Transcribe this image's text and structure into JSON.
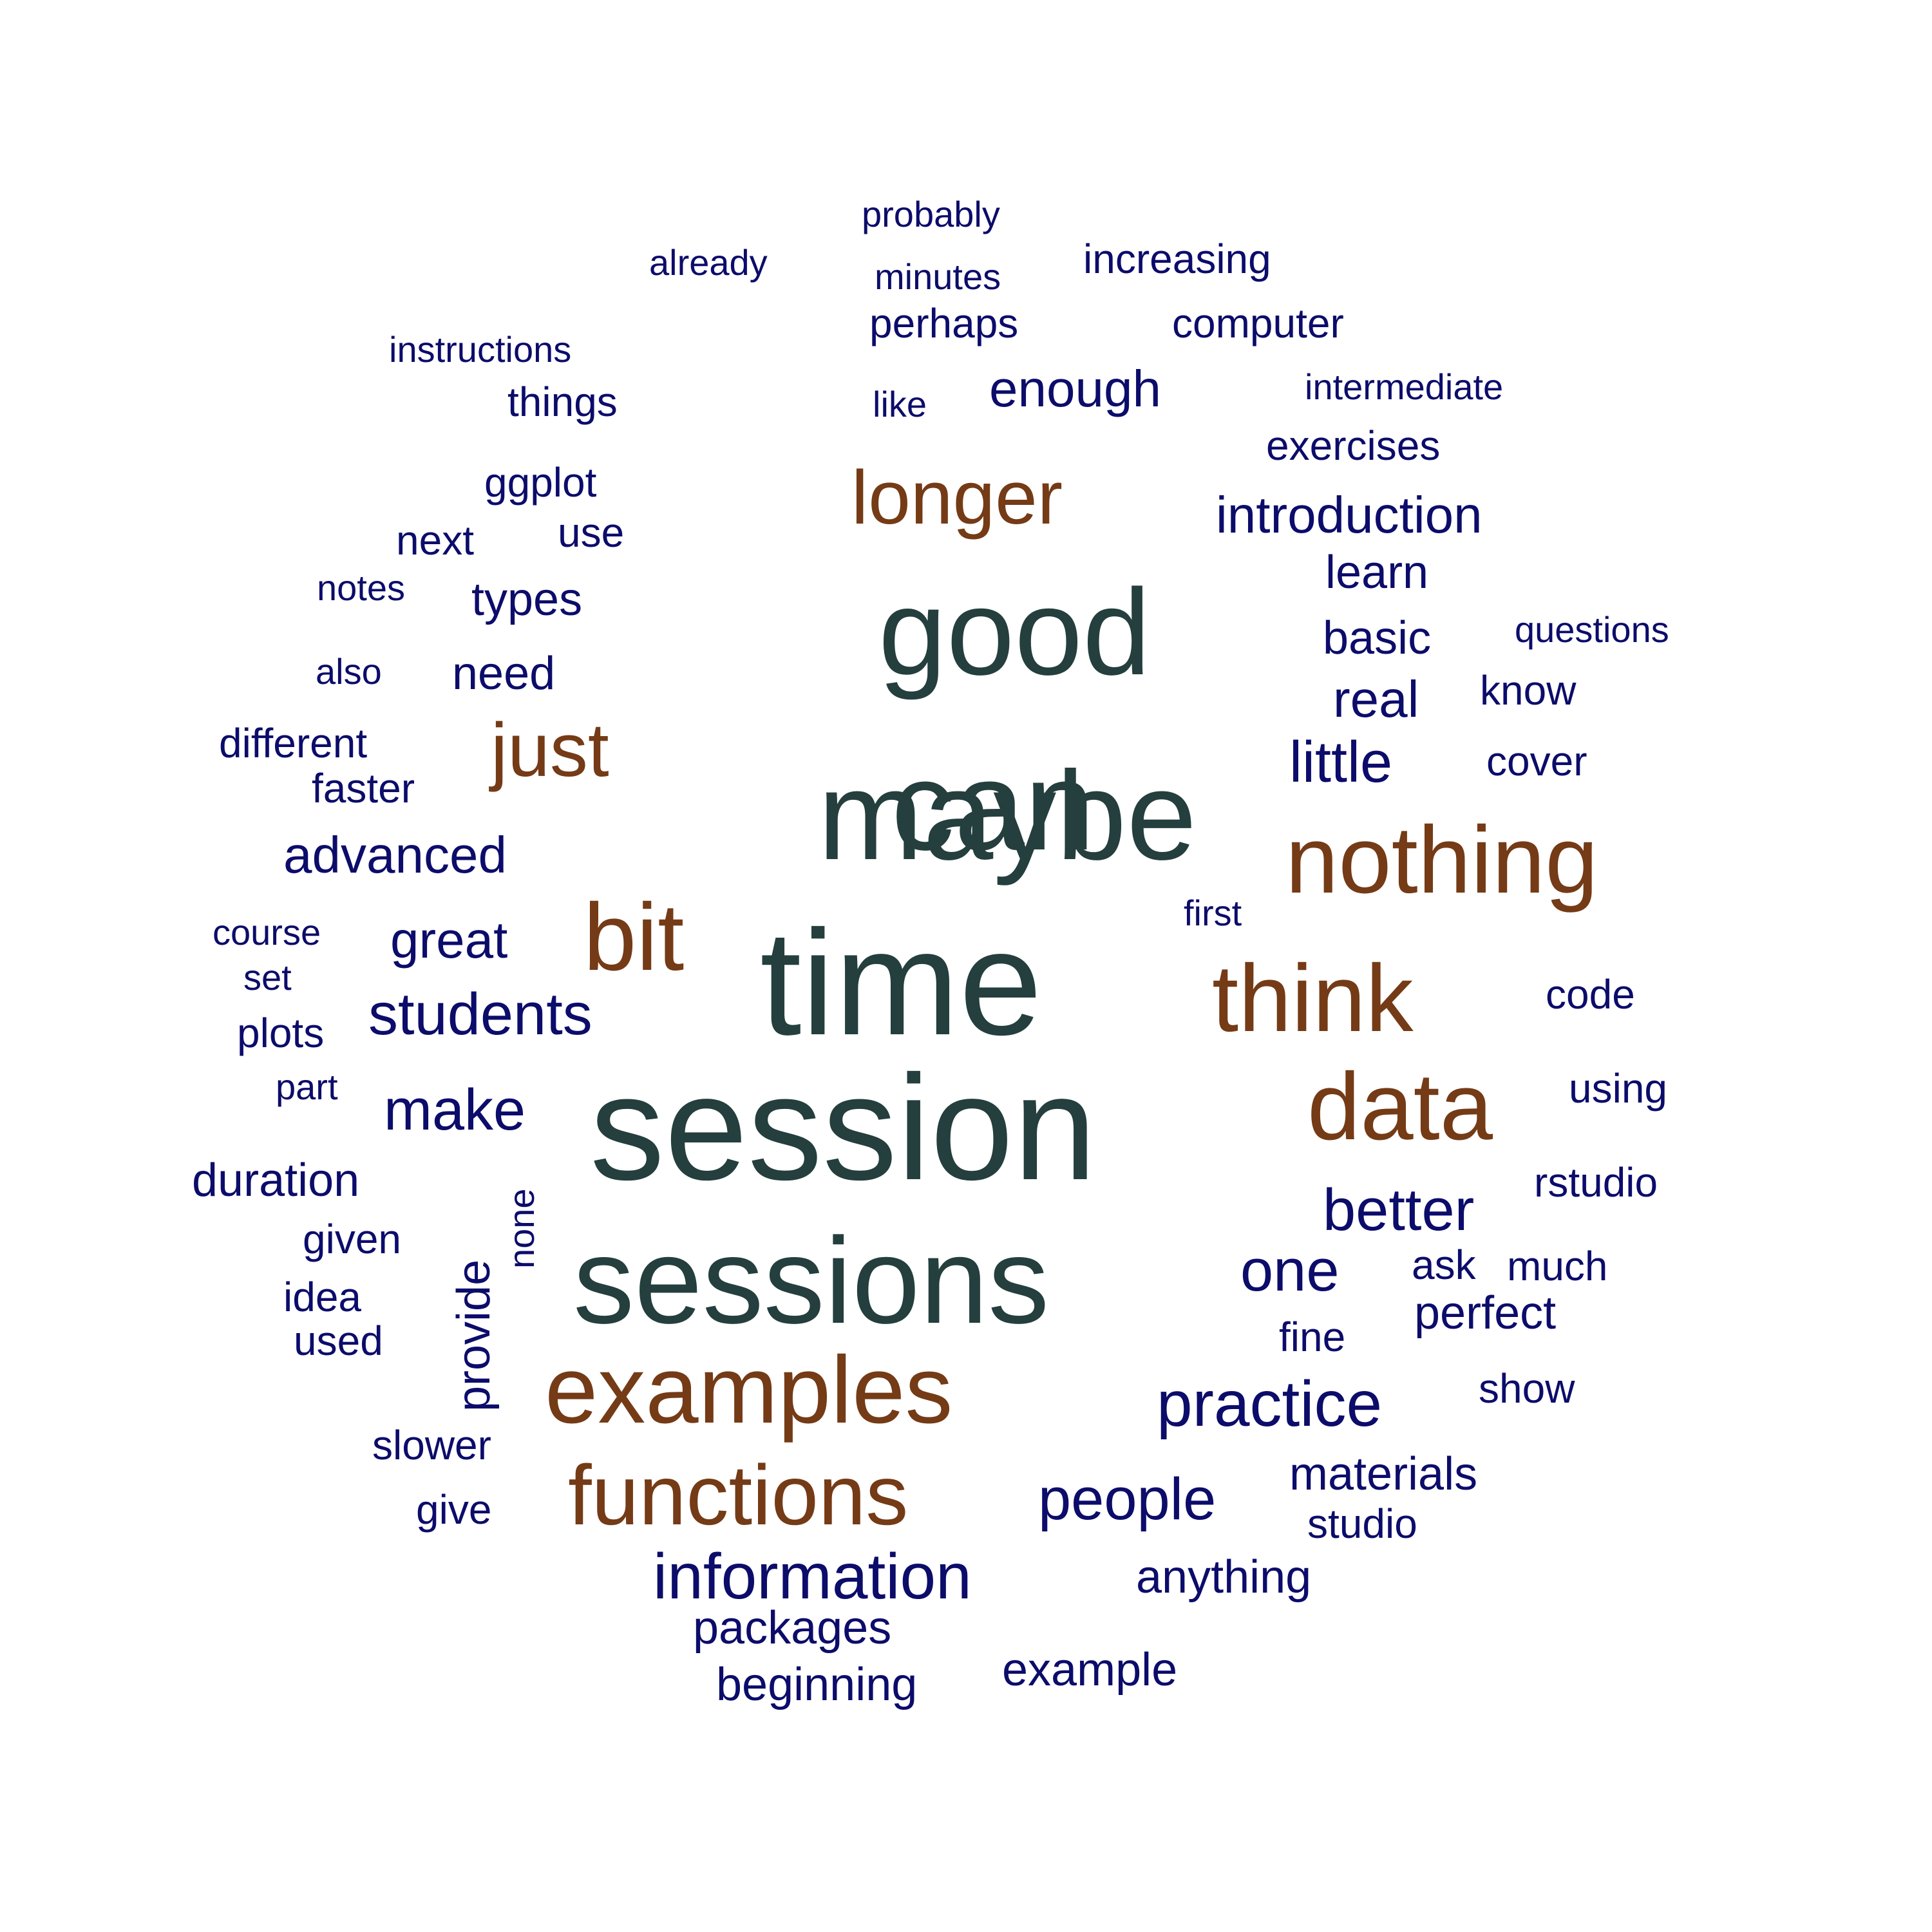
{
  "colors": {
    "tier1": "#243f3d",
    "tier2": "#743b16",
    "tier3": "#0c0c6b",
    "background": "#ffffff"
  },
  "words": [
    {
      "text": "probably",
      "tier": 3,
      "size": 56
    },
    {
      "text": "already",
      "tier": 3,
      "size": 56
    },
    {
      "text": "minutes",
      "tier": 3,
      "size": 56
    },
    {
      "text": "increasing",
      "tier": 3,
      "size": 64
    },
    {
      "text": "instructions",
      "tier": 3,
      "size": 56
    },
    {
      "text": "perhaps",
      "tier": 3,
      "size": 64
    },
    {
      "text": "computer",
      "tier": 3,
      "size": 64
    },
    {
      "text": "things",
      "tier": 3,
      "size": 64
    },
    {
      "text": "like",
      "tier": 3,
      "size": 56
    },
    {
      "text": "enough",
      "tier": 3,
      "size": 80
    },
    {
      "text": "intermediate",
      "tier": 3,
      "size": 56
    },
    {
      "text": "maybe",
      "tier": 1,
      "size": 196
    },
    {
      "text": "longer",
      "tier": 2,
      "size": 118
    },
    {
      "text": "exercises",
      "tier": 3,
      "size": 64
    },
    {
      "text": "ggplot",
      "tier": 3,
      "size": 64
    },
    {
      "text": "introduction",
      "tier": 3,
      "size": 80
    },
    {
      "text": "next",
      "tier": 3,
      "size": 64
    },
    {
      "text": "use",
      "tier": 3,
      "size": 64
    },
    {
      "text": "notes",
      "tier": 3,
      "size": 56
    },
    {
      "text": "good",
      "tier": 1,
      "size": 190
    },
    {
      "text": "learn",
      "tier": 3,
      "size": 72
    },
    {
      "text": "types",
      "tier": 3,
      "size": 72
    },
    {
      "text": "basic",
      "tier": 3,
      "size": 72
    },
    {
      "text": "questions",
      "tier": 3,
      "size": 56
    },
    {
      "text": "also",
      "tier": 3,
      "size": 56
    },
    {
      "text": "need",
      "tier": 3,
      "size": 72
    },
    {
      "text": "real",
      "tier": 3,
      "size": 80
    },
    {
      "text": "know",
      "tier": 3,
      "size": 64
    },
    {
      "text": "different",
      "tier": 3,
      "size": 64
    },
    {
      "text": "just",
      "tier": 2,
      "size": 118
    },
    {
      "text": "can",
      "tier": 1,
      "size": 196
    },
    {
      "text": "little",
      "tier": 3,
      "size": 90
    },
    {
      "text": "cover",
      "tier": 3,
      "size": 64
    },
    {
      "text": "faster",
      "tier": 3,
      "size": 64
    },
    {
      "text": "nothing",
      "tier": 2,
      "size": 148
    },
    {
      "text": "advanced",
      "tier": 3,
      "size": 80
    },
    {
      "text": "first",
      "tier": 3,
      "size": 56
    },
    {
      "text": "course",
      "tier": 3,
      "size": 56
    },
    {
      "text": "great",
      "tier": 3,
      "size": 80
    },
    {
      "text": "bit",
      "tier": 2,
      "size": 148
    },
    {
      "text": "time",
      "tier": 1,
      "size": 232
    },
    {
      "text": "think",
      "tier": 2,
      "size": 148
    },
    {
      "text": "set",
      "tier": 3,
      "size": 56
    },
    {
      "text": "code",
      "tier": 3,
      "size": 64
    },
    {
      "text": "students",
      "tier": 3,
      "size": 92
    },
    {
      "text": "plots",
      "tier": 3,
      "size": 64
    },
    {
      "text": "part",
      "tier": 3,
      "size": 56
    },
    {
      "text": "session",
      "tier": 1,
      "size": 232
    },
    {
      "text": "data",
      "tier": 2,
      "size": 148
    },
    {
      "text": "using",
      "tier": 3,
      "size": 64
    },
    {
      "text": "make",
      "tier": 3,
      "size": 90
    },
    {
      "text": "duration",
      "tier": 3,
      "size": 72
    },
    {
      "text": "rstudio",
      "tier": 3,
      "size": 64
    },
    {
      "text": "better",
      "tier": 3,
      "size": 92
    },
    {
      "text": "given",
      "tier": 3,
      "size": 64
    },
    {
      "text": "none",
      "tier": 3,
      "size": 56,
      "vertical": true
    },
    {
      "text": "provide",
      "tier": 3,
      "size": 72,
      "vertical": true
    },
    {
      "text": "sessions",
      "tier": 1,
      "size": 190
    },
    {
      "text": "one",
      "tier": 3,
      "size": 92
    },
    {
      "text": "ask",
      "tier": 3,
      "size": 64
    },
    {
      "text": "much",
      "tier": 3,
      "size": 64
    },
    {
      "text": "idea",
      "tier": 3,
      "size": 64
    },
    {
      "text": "perfect",
      "tier": 3,
      "size": 72
    },
    {
      "text": "fine",
      "tier": 3,
      "size": 64
    },
    {
      "text": "used",
      "tier": 3,
      "size": 64
    },
    {
      "text": "examples",
      "tier": 2,
      "size": 148
    },
    {
      "text": "practice",
      "tier": 3,
      "size": 100
    },
    {
      "text": "show",
      "tier": 3,
      "size": 64
    },
    {
      "text": "slower",
      "tier": 3,
      "size": 64
    },
    {
      "text": "functions",
      "tier": 2,
      "size": 132
    },
    {
      "text": "people",
      "tier": 3,
      "size": 92
    },
    {
      "text": "materials",
      "tier": 3,
      "size": 72
    },
    {
      "text": "give",
      "tier": 3,
      "size": 64
    },
    {
      "text": "studio",
      "tier": 3,
      "size": 64
    },
    {
      "text": "information",
      "tier": 3,
      "size": 100
    },
    {
      "text": "anything",
      "tier": 3,
      "size": 72
    },
    {
      "text": "packages",
      "tier": 3,
      "size": 72
    },
    {
      "text": "beginning",
      "tier": 3,
      "size": 72
    },
    {
      "text": "example",
      "tier": 3,
      "size": 72
    }
  ]
}
